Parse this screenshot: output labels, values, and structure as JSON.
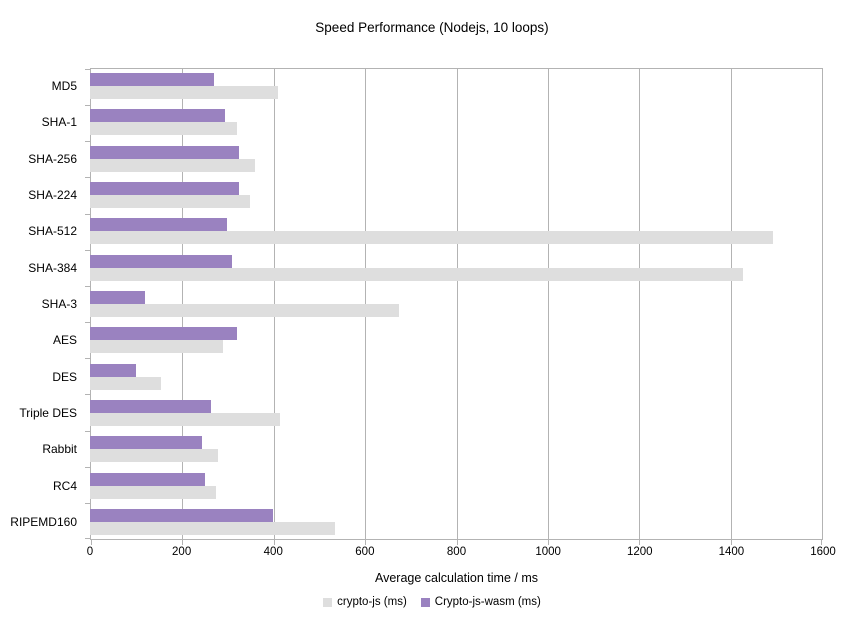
{
  "title": "Speed Performance (Nodejs, 10 loops)",
  "colors": {
    "background": "#ffffff",
    "axis_and_grid": "#b3b3b3",
    "series_crypto_js": "#dedede",
    "series_crypto_js_wasm": "#9a82c0",
    "text": "#000000"
  },
  "chart_data": {
    "type": "bar",
    "orientation": "horizontal",
    "title": "Speed Performance (Nodejs, 10 loops)",
    "xlabel": "Average calculation time / ms",
    "ylabel": "",
    "xlim": [
      0,
      1600
    ],
    "xticks": [
      0,
      200,
      400,
      600,
      800,
      1000,
      1200,
      1400,
      1600
    ],
    "grid": true,
    "legend_position": "bottom",
    "categories": [
      "MD5",
      "SHA-1",
      "SHA-256",
      "SHA-224",
      "SHA-512",
      "SHA-384",
      "SHA-3",
      "AES",
      "DES",
      "Triple DES",
      "Rabbit",
      "RC4",
      "RIPEMD160"
    ],
    "series": [
      {
        "name": "crypto-js (ms)",
        "color": "#dedede",
        "values": [
          410,
          320,
          360,
          350,
          1490,
          1425,
          675,
          290,
          155,
          415,
          280,
          275,
          535
        ]
      },
      {
        "name": "Crypto-js-wasm (ms)",
        "color": "#9a82c0",
        "values": [
          270,
          295,
          325,
          325,
          300,
          310,
          120,
          320,
          100,
          265,
          245,
          250,
          400
        ]
      }
    ]
  }
}
